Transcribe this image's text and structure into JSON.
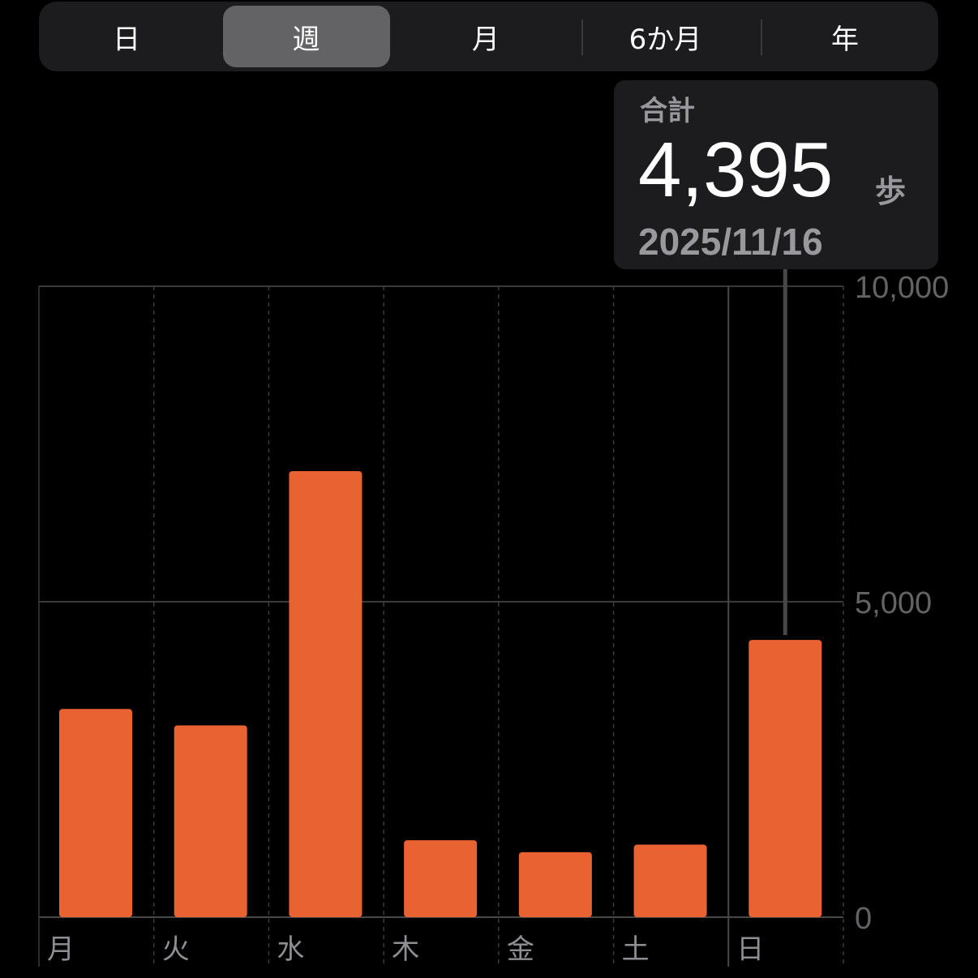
{
  "segmented_control": {
    "items": [
      "日",
      "週",
      "月",
      "6か月",
      "年"
    ],
    "selected": "週"
  },
  "callout": {
    "label": "合計",
    "value": "4,395",
    "unit": "歩",
    "date": "2025/11/16"
  },
  "colors": {
    "bar": "#e96332",
    "background": "#000000",
    "grid": "#3a3a3c"
  },
  "chart_data": {
    "type": "bar",
    "categories": [
      "月",
      "火",
      "水",
      "木",
      "金",
      "土",
      "日"
    ],
    "values": [
      3300,
      3040,
      7070,
      1220,
      1030,
      1150,
      4395
    ],
    "ylim": [
      0,
      10000
    ],
    "yticks": [
      0,
      5000,
      10000
    ],
    "ytick_labels": [
      "0",
      "5,000",
      "10,000"
    ],
    "grid": true,
    "selected_category": "日"
  }
}
